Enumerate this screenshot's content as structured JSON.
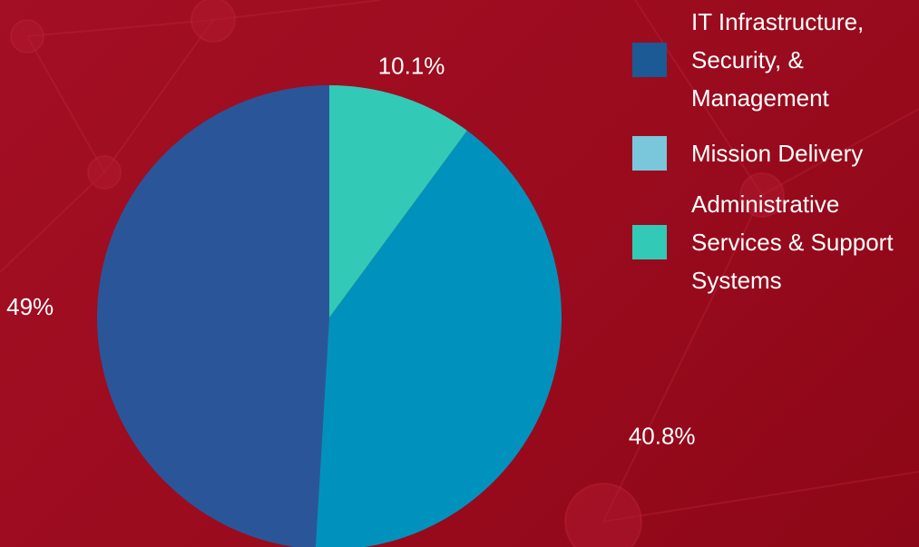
{
  "chart_data": {
    "type": "pie",
    "categories": [
      "IT Infrastructure, Security, & Management",
      "Mission Delivery",
      "Administrative Services & Support Systems"
    ],
    "values": [
      49,
      40.8,
      10.1
    ],
    "value_labels": [
      "49%",
      "40.8%",
      "10.1%"
    ],
    "colors": [
      "#2a5699",
      "#0092bd",
      "#33c9b7"
    ],
    "legend_colors": [
      "#1b5a94",
      "#7ac7dc",
      "#33c9b7"
    ],
    "legend": "right"
  }
}
